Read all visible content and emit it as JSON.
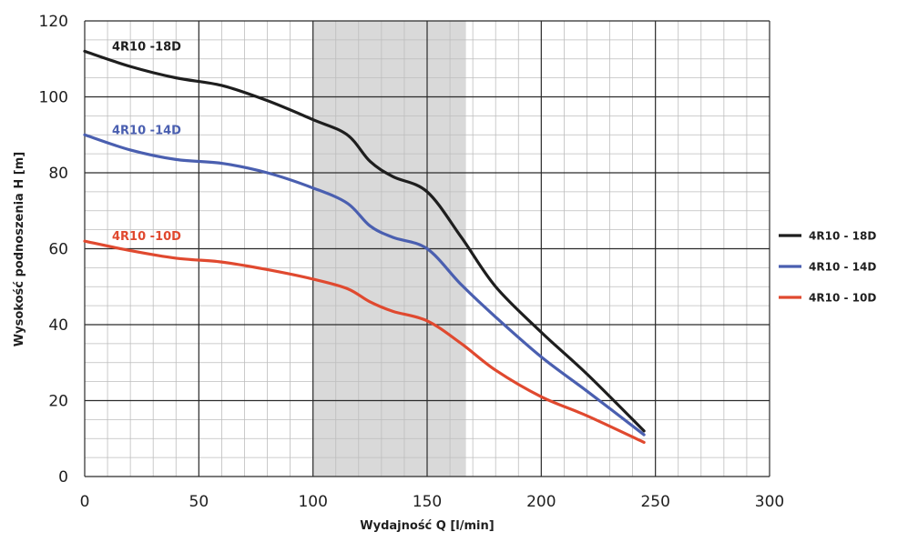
{
  "chart_data": {
    "type": "line",
    "xlabel": "Wydajność Q [l/min]",
    "ylabel": "Wysokość podnoszenia H [m]",
    "xlim": [
      0,
      300
    ],
    "ylim": [
      0,
      120
    ],
    "x_ticks": [
      "0",
      "50",
      "100",
      "150",
      "200",
      "250",
      "300"
    ],
    "y_ticks": [
      "0",
      "20",
      "40",
      "60",
      "80",
      "100",
      "120"
    ],
    "grid": true,
    "shaded_region": {
      "x_start": 100,
      "x_end": 167,
      "color": "#d9d9d9"
    },
    "legend_position": "right",
    "series": [
      {
        "name": "4R10 - 18D",
        "inline_label": "4R10 -18D",
        "color": "#1e1e1e",
        "x": [
          0,
          20,
          40,
          60,
          80,
          100,
          115,
          125,
          135,
          150,
          165,
          180,
          200,
          220,
          245
        ],
        "y": [
          112,
          108,
          105,
          103,
          99,
          94,
          90,
          83,
          79,
          75,
          63,
          50,
          38,
          27,
          12
        ]
      },
      {
        "name": "4R10 - 14D",
        "inline_label": "4R10 -14D",
        "color": "#4a5fb0",
        "x": [
          0,
          20,
          40,
          60,
          80,
          100,
          115,
          125,
          135,
          150,
          165,
          180,
          200,
          220,
          245
        ],
        "y": [
          90,
          86,
          83.5,
          82.5,
          80,
          76,
          72,
          66,
          63,
          60,
          50.5,
          42,
          31.5,
          22.5,
          11
        ]
      },
      {
        "name": "4R10 - 10D",
        "inline_label": "4R10 -10D",
        "color": "#e0492f",
        "x": [
          0,
          20,
          40,
          60,
          80,
          100,
          115,
          125,
          135,
          150,
          165,
          180,
          200,
          220,
          245
        ],
        "y": [
          62,
          59.5,
          57.5,
          56.5,
          54.5,
          52,
          49.5,
          46,
          43.5,
          41,
          35,
          28,
          21,
          16,
          9
        ]
      }
    ]
  }
}
